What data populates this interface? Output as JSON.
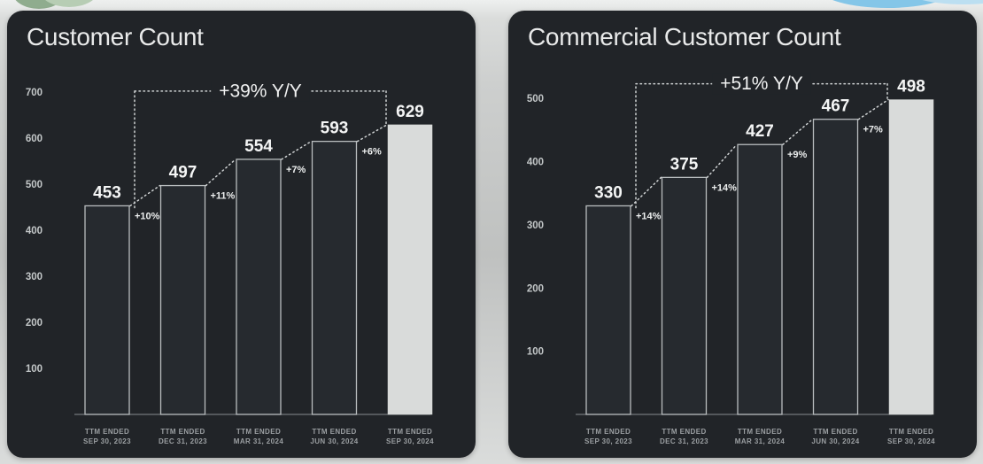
{
  "decorations": {
    "green_dark": "#8fac8e",
    "green_light": "#b7cdb4",
    "blue_main": "#84c6e8",
    "blue_light": "#bcdff1"
  },
  "chart_data": [
    {
      "type": "bar",
      "title": "Customer Count",
      "yoy_annotation": "+39% Y/Y",
      "y_ticks": [
        700,
        600,
        500,
        400,
        300,
        200,
        100
      ],
      "categories": [
        "TTM ENDED\nSEP 30, 2023",
        "TTM ENDED\nDEC 31, 2023",
        "TTM ENDED\nMAR 31, 2024",
        "TTM ENDED\nJUN 30, 2024",
        "TTM ENDED\nSEP 30, 2024"
      ],
      "values": [
        453,
        497,
        554,
        593,
        629
      ],
      "growth_labels": [
        "+10%",
        "+11%",
        "+7%",
        "+6%"
      ],
      "ylim": [
        0,
        700
      ],
      "grid": false,
      "legend": false,
      "highlight_last_bar": true,
      "colors": {
        "panel_bg": "#212428",
        "bar_fill": "#262a2f",
        "bar_outline": "#b9bdbf",
        "highlight_bar_fill": "#d9dbda",
        "dotted_line": "#d0d3d4",
        "axis_line": "#878c8f"
      }
    },
    {
      "type": "bar",
      "title": "Commercial Customer Count",
      "yoy_annotation": "+51% Y/Y",
      "y_ticks": [
        500,
        400,
        300,
        200,
        100
      ],
      "categories": [
        "TTM ENDED\nSEP 30, 2023",
        "TTM ENDED\nDEC 31, 2023",
        "TTM ENDED\nMAR 31, 2024",
        "TTM ENDED\nJUN 30, 2024",
        "TTM ENDED\nSEP 30, 2024"
      ],
      "values": [
        330,
        375,
        427,
        467,
        498
      ],
      "growth_labels": [
        "+14%",
        "+14%",
        "+9%",
        "+7%"
      ],
      "ylim": [
        0,
        510
      ],
      "grid": false,
      "legend": false,
      "highlight_last_bar": true,
      "colors": {
        "panel_bg": "#212428",
        "bar_fill": "#262a2f",
        "bar_outline": "#b9bdbf",
        "highlight_bar_fill": "#d9dbda",
        "dotted_line": "#d0d3d4",
        "axis_line": "#878c8f"
      }
    }
  ]
}
